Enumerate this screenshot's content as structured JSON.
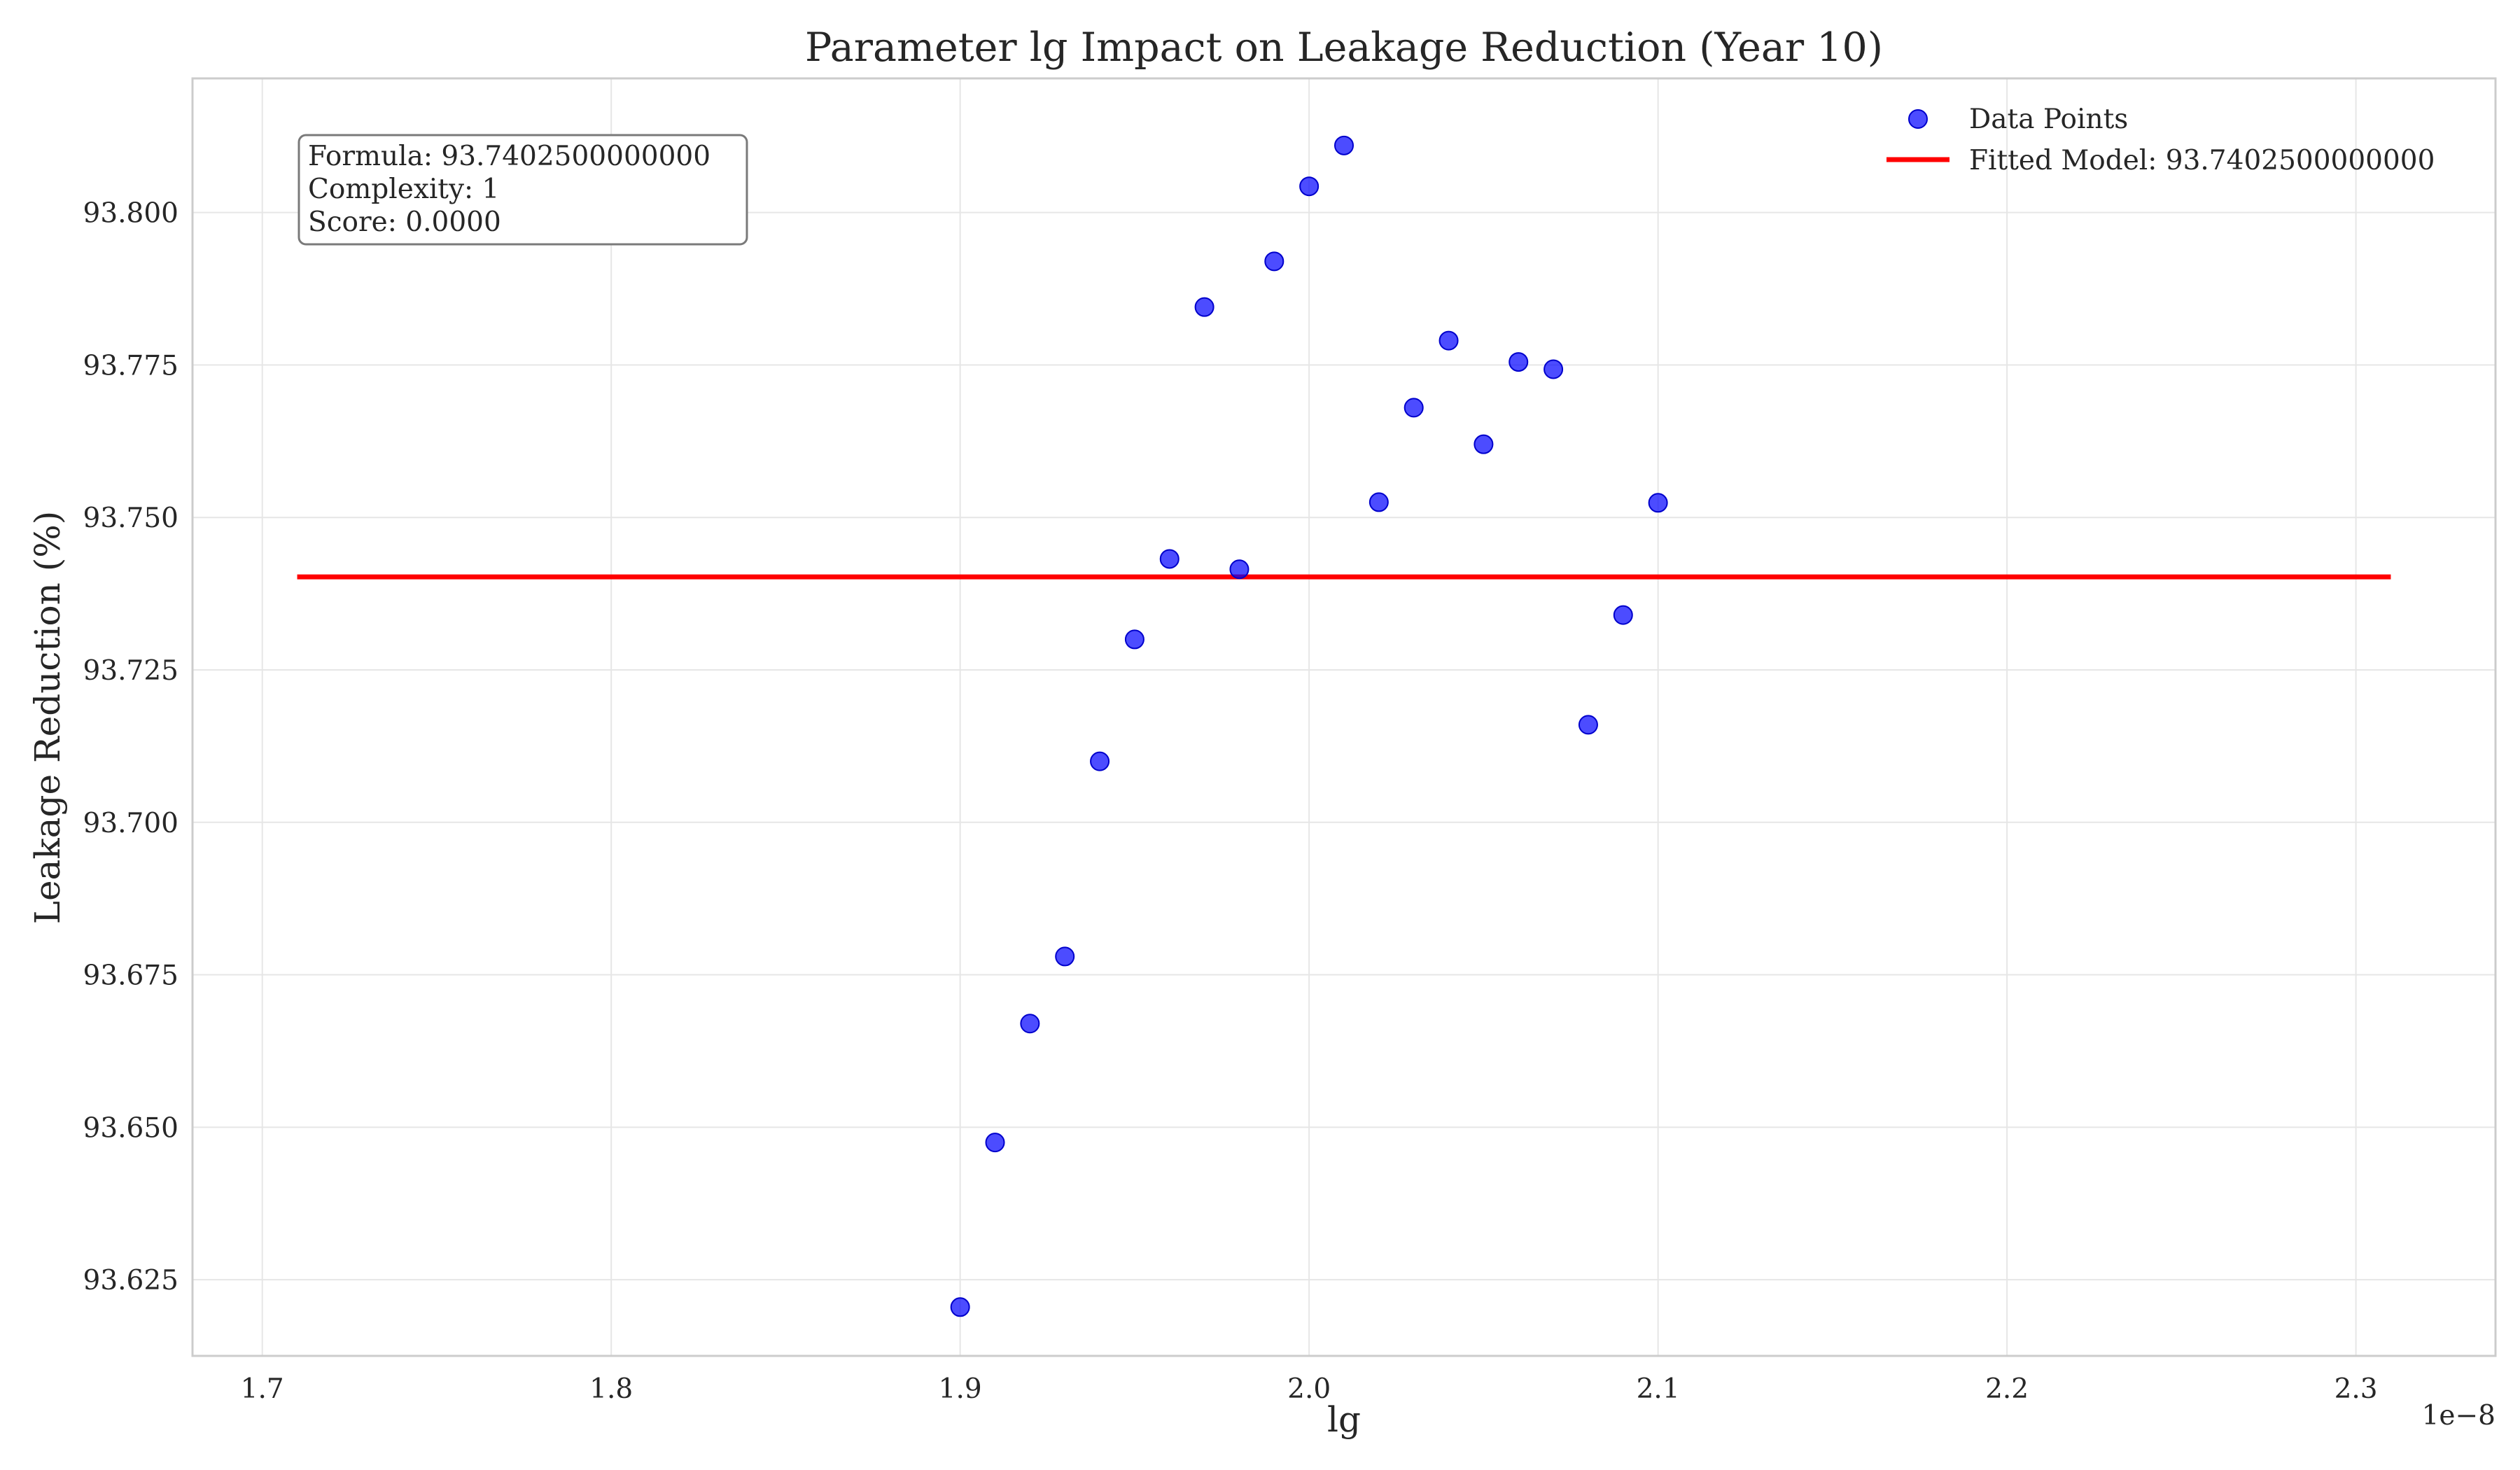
{
  "chart_data": {
    "type": "scatter",
    "title": "Parameter lg Impact on Leakage Reduction (Year 10)",
    "xlabel": "lg",
    "ylabel": "Leakage Reduction (%)",
    "x_offset_label": "1e−8",
    "x_unit_scale": 1e-08,
    "xlim": [
      1.68,
      2.34
    ],
    "ylim": [
      93.6125,
      93.822
    ],
    "x_ticks": [
      1.7,
      1.8,
      1.9,
      2.0,
      2.1,
      2.2,
      2.3
    ],
    "x_tick_labels": [
      "1.7",
      "1.8",
      "1.9",
      "2.0",
      "2.1",
      "2.2",
      "2.3"
    ],
    "y_ticks": [
      93.625,
      93.65,
      93.675,
      93.7,
      93.725,
      93.75,
      93.775,
      93.8
    ],
    "y_tick_labels": [
      "93.625",
      "93.650",
      "93.675",
      "93.700",
      "93.725",
      "93.750",
      "93.775",
      "93.800"
    ],
    "grid": true,
    "legend_position": "top-right",
    "series": [
      {
        "name": "Data Points",
        "kind": "scatter",
        "color": "#0000ff",
        "x": [
          1.9,
          1.91,
          1.92,
          1.93,
          1.94,
          1.95,
          1.96,
          1.97,
          1.98,
          1.99,
          2.0,
          2.01,
          2.02,
          2.03,
          2.04,
          2.05,
          2.06,
          2.07,
          2.08,
          2.09,
          2.1
        ],
        "y": [
          93.6205,
          93.6475,
          93.667,
          93.678,
          93.71,
          93.73,
          93.7432,
          93.7845,
          93.7415,
          93.792,
          93.8043,
          93.811,
          93.7525,
          93.768,
          93.779,
          93.762,
          93.7755,
          93.7743,
          93.716,
          93.734,
          93.7524
        ]
      },
      {
        "name": "Fitted Model: 93.7402500000000",
        "kind": "line",
        "color": "#ff0000",
        "x": [
          1.71,
          2.31
        ],
        "y": [
          93.74025,
          93.74025
        ]
      }
    ],
    "annotation": {
      "lines": [
        "Formula: 93.7402500000000",
        "Complexity: 1",
        "Score: 0.0000"
      ]
    }
  }
}
